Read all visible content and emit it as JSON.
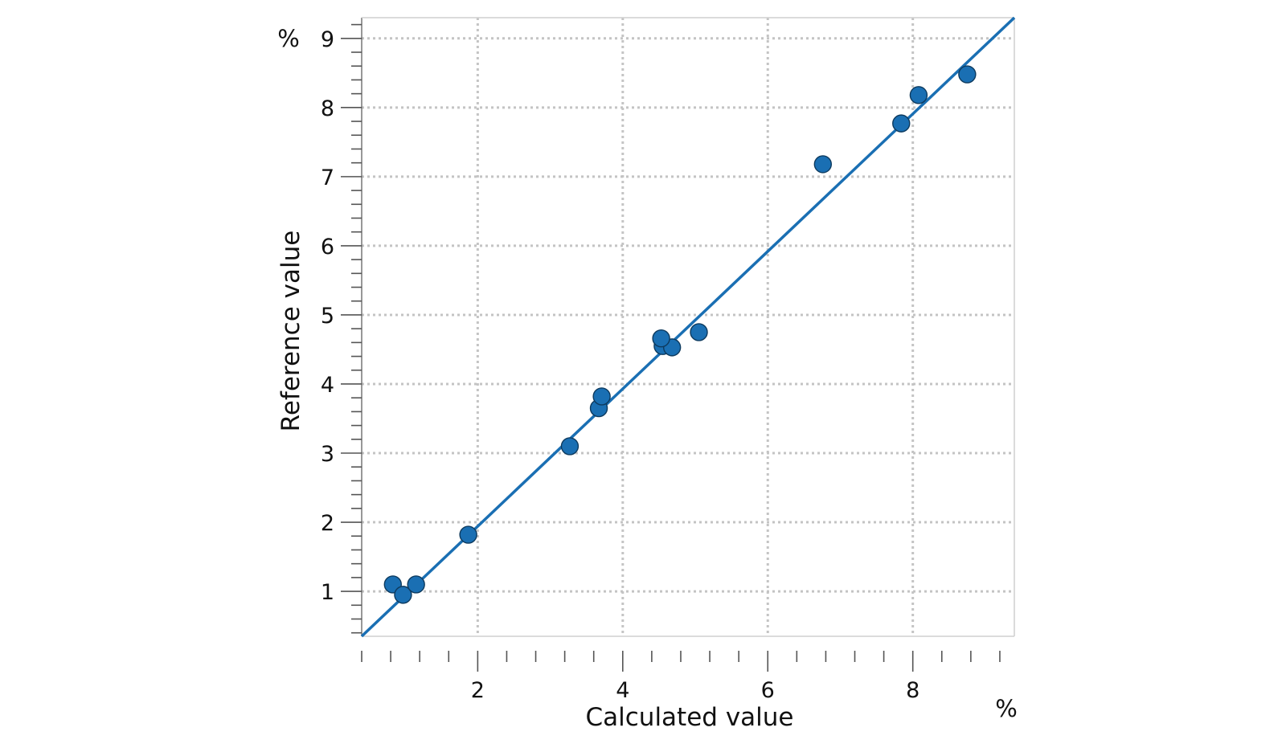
{
  "chart_data": {
    "type": "scatter",
    "xlabel": "Calculated value",
    "ylabel": "Reference value",
    "x_unit": "%",
    "y_unit": "%",
    "xlim": [
      0.4,
      9.4
    ],
    "ylim": [
      0.35,
      9.3
    ],
    "x_ticks": [
      2,
      4,
      6,
      8
    ],
    "y_ticks": [
      1,
      2,
      3,
      4,
      5,
      6,
      7,
      8,
      9
    ],
    "x_minor_step": 0.4,
    "y_minor_step": 0.2,
    "grid": true,
    "point_color": "#1a6fb3",
    "line_color": "#1a6fb3",
    "fit_line": {
      "x": [
        0.4,
        9.4
      ],
      "y": [
        0.35,
        9.3
      ]
    },
    "points": [
      {
        "x": 0.83,
        "y": 1.1
      },
      {
        "x": 0.97,
        "y": 0.95
      },
      {
        "x": 1.15,
        "y": 1.1
      },
      {
        "x": 1.87,
        "y": 1.82
      },
      {
        "x": 3.27,
        "y": 3.1
      },
      {
        "x": 3.67,
        "y": 3.65
      },
      {
        "x": 3.71,
        "y": 3.82
      },
      {
        "x": 4.55,
        "y": 4.55
      },
      {
        "x": 4.68,
        "y": 4.53
      },
      {
        "x": 4.53,
        "y": 4.66
      },
      {
        "x": 5.05,
        "y": 4.75
      },
      {
        "x": 6.76,
        "y": 7.18
      },
      {
        "x": 7.84,
        "y": 7.77
      },
      {
        "x": 8.08,
        "y": 8.18
      },
      {
        "x": 8.75,
        "y": 8.48
      }
    ]
  }
}
